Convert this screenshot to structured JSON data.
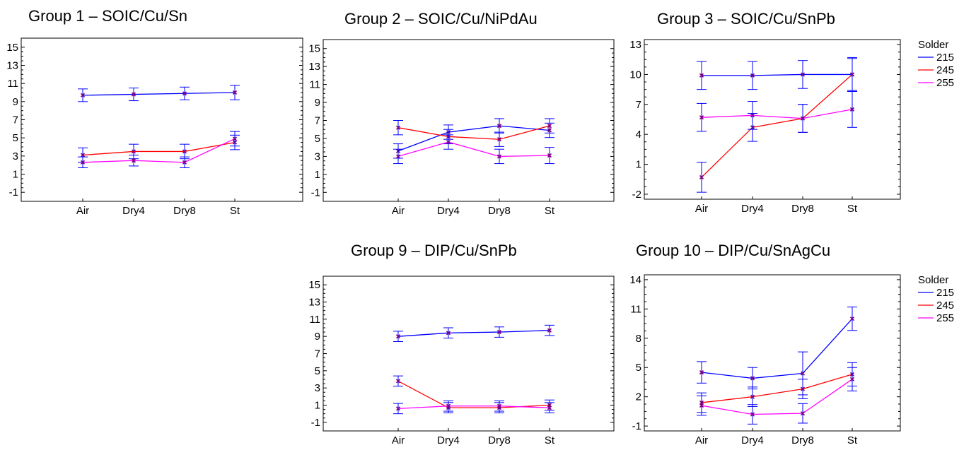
{
  "chart_data": [
    {
      "type": "line",
      "title": "Group 1 – SOIC/Cu/Sn",
      "categories": [
        "Air",
        "Dry4",
        "Dry8",
        "St"
      ],
      "ylim": [
        -2,
        16
      ],
      "yticks": [
        -1,
        1,
        3,
        5,
        7,
        9,
        11,
        13,
        15
      ],
      "grid": false,
      "legend": null,
      "series": [
        {
          "name": "215",
          "color": "#0000ff",
          "values": [
            9.7,
            9.8,
            9.9,
            10.0
          ],
          "err": [
            0.7,
            0.7,
            0.7,
            0.8
          ]
        },
        {
          "name": "245",
          "color": "#ff0000",
          "values": [
            3.1,
            3.5,
            3.5,
            4.5
          ],
          "err": [
            0.8,
            0.8,
            0.8,
            0.8
          ]
        },
        {
          "name": "255",
          "color": "#ff00ff",
          "values": [
            2.3,
            2.5,
            2.3,
            4.9
          ],
          "err": [
            0.6,
            0.6,
            0.6,
            0.8
          ]
        }
      ]
    },
    {
      "type": "line",
      "title": "Group 2 – SOIC/Cu/NiPdAu",
      "categories": [
        "Air",
        "Dry4",
        "Dry8",
        "St"
      ],
      "ylim": [
        -2,
        16
      ],
      "yticks": [
        -1,
        1,
        3,
        5,
        7,
        9,
        11,
        13,
        15
      ],
      "grid": false,
      "legend": null,
      "series": [
        {
          "name": "215",
          "color": "#0000ff",
          "values": [
            3.6,
            5.7,
            6.4,
            5.9
          ],
          "err": [
            0.8,
            0.8,
            0.8,
            0.8
          ]
        },
        {
          "name": "245",
          "color": "#ff0000",
          "values": [
            6.2,
            5.2,
            4.9,
            6.4
          ],
          "err": [
            0.8,
            0.8,
            0.8,
            0.8
          ]
        },
        {
          "name": "255",
          "color": "#ff00ff",
          "values": [
            3.0,
            4.6,
            3.0,
            3.1
          ],
          "err": [
            0.8,
            0.8,
            0.8,
            0.9
          ]
        }
      ]
    },
    {
      "type": "line",
      "title": "Group 3 – SOIC/Cu/SnPb",
      "categories": [
        "Air",
        "Dry4",
        "Dry8",
        "St"
      ],
      "ylim": [
        -2.5,
        13.5
      ],
      "yticks": [
        -2,
        1,
        4,
        7,
        10,
        13
      ],
      "grid": false,
      "legend": {
        "title": "Solder",
        "position": "right"
      },
      "series": [
        {
          "name": "215",
          "color": "#0000ff",
          "values": [
            9.9,
            9.9,
            10.0,
            10.0
          ],
          "err": [
            1.4,
            1.4,
            1.4,
            1.6
          ]
        },
        {
          "name": "245",
          "color": "#ff0000",
          "values": [
            -0.3,
            4.7,
            5.6,
            10.0
          ],
          "err": [
            1.5,
            1.4,
            1.4,
            1.7
          ]
        },
        {
          "name": "255",
          "color": "#ff00ff",
          "values": [
            5.7,
            5.9,
            5.6,
            6.5
          ],
          "err": [
            1.4,
            1.4,
            1.4,
            1.8
          ]
        }
      ]
    },
    {
      "type": "line",
      "title": "Group 9 – DIP/Cu/SnPb",
      "categories": [
        "Air",
        "Dry4",
        "Dry8",
        "St"
      ],
      "ylim": [
        -2,
        16
      ],
      "yticks": [
        -1,
        1,
        3,
        5,
        7,
        9,
        11,
        13,
        15
      ],
      "grid": false,
      "legend": null,
      "series": [
        {
          "name": "215",
          "color": "#0000ff",
          "values": [
            9.0,
            9.4,
            9.5,
            9.7
          ],
          "err": [
            0.6,
            0.6,
            0.6,
            0.6
          ]
        },
        {
          "name": "245",
          "color": "#ff0000",
          "values": [
            3.8,
            0.7,
            0.7,
            1.0
          ],
          "err": [
            0.6,
            0.6,
            0.6,
            0.6
          ]
        },
        {
          "name": "255",
          "color": "#ff00ff",
          "values": [
            0.6,
            0.9,
            0.9,
            0.7
          ],
          "err": [
            0.6,
            0.6,
            0.6,
            0.6
          ]
        }
      ]
    },
    {
      "type": "line",
      "title": "Group 10 – DIP/Cu/SnAgCu",
      "categories": [
        "Air",
        "Dry4",
        "Dry8",
        "St"
      ],
      "ylim": [
        -1.5,
        14.5
      ],
      "yticks": [
        -1,
        2,
        5,
        8,
        11,
        14
      ],
      "grid": false,
      "legend": {
        "title": "Solder",
        "position": "right"
      },
      "series": [
        {
          "name": "215",
          "color": "#0000ff",
          "values": [
            4.5,
            3.9,
            4.4,
            10.0
          ],
          "err": [
            1.1,
            1.1,
            2.2,
            1.2
          ]
        },
        {
          "name": "245",
          "color": "#ff0000",
          "values": [
            1.4,
            2.0,
            2.8,
            4.3
          ],
          "err": [
            1.0,
            1.0,
            1.0,
            1.2
          ]
        },
        {
          "name": "255",
          "color": "#ff00ff",
          "values": [
            1.1,
            0.2,
            0.3,
            3.8
          ],
          "err": [
            1.0,
            1.0,
            1.0,
            1.2
          ]
        }
      ]
    }
  ]
}
